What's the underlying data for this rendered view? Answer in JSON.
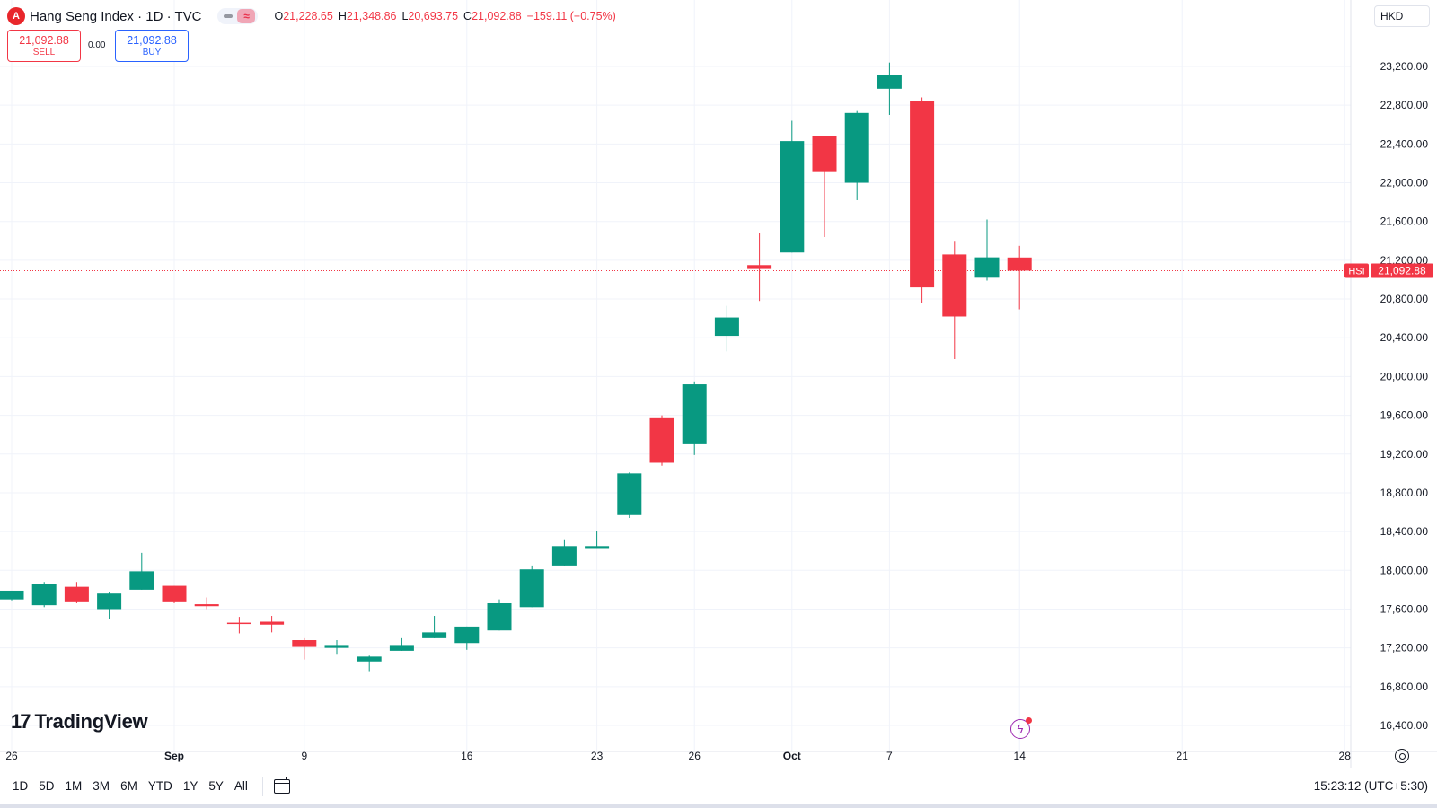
{
  "header": {
    "logo_letter": "A",
    "title": "Hang Seng Index · 1D · TVC",
    "ohlc": {
      "o_label": "O",
      "o": "21,228.65",
      "h_label": "H",
      "h": "21,348.86",
      "l_label": "L",
      "l": "20,693.75",
      "c_label": "C",
      "c": "21,092.88",
      "change": "−159.11 (−0.75%)"
    },
    "sell": {
      "price": "21,092.88",
      "label": "SELL"
    },
    "spread": "0.00",
    "buy": {
      "price": "21,092.88",
      "label": "BUY"
    },
    "currency": "HKD"
  },
  "branding": {
    "logo_mark": "17",
    "logo_text": "TradingView"
  },
  "price_tag": {
    "symbol": "HSI",
    "price": "21,092.88",
    "value": 21092.88
  },
  "footer": {
    "ranges": [
      "1D",
      "5D",
      "1M",
      "3M",
      "6M",
      "YTD",
      "1Y",
      "5Y",
      "All"
    ],
    "time": "15:23:12 (UTC+5:30)"
  },
  "colors": {
    "up": "#089981",
    "down": "#f23645",
    "grid": "#f0f3fa",
    "axis_text": "#131722"
  },
  "chart_data": {
    "type": "candlestick",
    "y_ticks": [
      16400,
      16800,
      17200,
      17600,
      18000,
      18400,
      18800,
      19200,
      19600,
      20000,
      20400,
      20800,
      21200,
      21600,
      22000,
      22400,
      22800,
      23200
    ],
    "y_tick_labels": [
      "16,400.00",
      "16,800.00",
      "17,200.00",
      "17,600.00",
      "18,000.00",
      "18,400.00",
      "18,800.00",
      "19,200.00",
      "19,600.00",
      "20,000.00",
      "20,400.00",
      "20,800.00",
      "21,200.00",
      "21,600.00",
      "22,000.00",
      "22,400.00",
      "22,800.00",
      "23,200.00"
    ],
    "x_labels": [
      {
        "bar": 0,
        "label": "26"
      },
      {
        "bar": 5,
        "label": "Sep"
      },
      {
        "bar": 9,
        "label": "9"
      },
      {
        "bar": 14,
        "label": "16"
      },
      {
        "bar": 18,
        "label": "23"
      },
      {
        "bar": 21,
        "label": "26"
      },
      {
        "bar": 24,
        "label": "Oct"
      },
      {
        "bar": 27,
        "label": "7"
      },
      {
        "bar": 31,
        "label": "14"
      },
      {
        "bar": 36,
        "label": "21"
      },
      {
        "bar": 41,
        "label": "28"
      }
    ],
    "candles": [
      {
        "o": 17700,
        "h": 17790,
        "l": 17690,
        "c": 17790
      },
      {
        "o": 17640,
        "h": 17880,
        "l": 17620,
        "c": 17860
      },
      {
        "o": 17830,
        "h": 17880,
        "l": 17660,
        "c": 17680
      },
      {
        "o": 17600,
        "h": 17780,
        "l": 17500,
        "c": 17760
      },
      {
        "o": 17800,
        "h": 18180,
        "l": 17800,
        "c": 17990
      },
      {
        "o": 17840,
        "h": 17840,
        "l": 17660,
        "c": 17680
      },
      {
        "o": 17650,
        "h": 17720,
        "l": 17600,
        "c": 17630
      },
      {
        "o": 17460,
        "h": 17520,
        "l": 17350,
        "c": 17450
      },
      {
        "o": 17470,
        "h": 17530,
        "l": 17360,
        "c": 17440
      },
      {
        "o": 17280,
        "h": 17300,
        "l": 17080,
        "c": 17210
      },
      {
        "o": 17200,
        "h": 17280,
        "l": 17130,
        "c": 17230
      },
      {
        "o": 17060,
        "h": 17120,
        "l": 16960,
        "c": 17110
      },
      {
        "o": 17170,
        "h": 17300,
        "l": 17170,
        "c": 17230
      },
      {
        "o": 17300,
        "h": 17530,
        "l": 17300,
        "c": 17360
      },
      {
        "o": 17250,
        "h": 17420,
        "l": 17180,
        "c": 17420
      },
      {
        "o": 17380,
        "h": 17700,
        "l": 17380,
        "c": 17660
      },
      {
        "o": 17620,
        "h": 18050,
        "l": 17620,
        "c": 18010
      },
      {
        "o": 18050,
        "h": 18320,
        "l": 18050,
        "c": 18250
      },
      {
        "o": 18230,
        "h": 18410,
        "l": 18230,
        "c": 18250
      },
      {
        "o": 18570,
        "h": 19010,
        "l": 18540,
        "c": 19000
      },
      {
        "o": 19570,
        "h": 19600,
        "l": 19080,
        "c": 19110
      },
      {
        "o": 19310,
        "h": 19950,
        "l": 19190,
        "c": 19920
      },
      {
        "o": 20420,
        "h": 20730,
        "l": 20260,
        "c": 20610
      },
      {
        "o": 21150,
        "h": 21480,
        "l": 20780,
        "c": 21110
      },
      {
        "o": 21280,
        "h": 22640,
        "l": 21280,
        "c": 22430
      },
      {
        "o": 22480,
        "h": 22480,
        "l": 21440,
        "c": 22110
      },
      {
        "o": 22000,
        "h": 22740,
        "l": 21820,
        "c": 22720
      },
      {
        "o": 22970,
        "h": 23240,
        "l": 22700,
        "c": 23110
      },
      {
        "o": 22840,
        "h": 22880,
        "l": 20760,
        "c": 20920
      },
      {
        "o": 21260,
        "h": 21400,
        "l": 20180,
        "c": 20620
      },
      {
        "o": 21020,
        "h": 21620,
        "l": 20990,
        "c": 21230
      },
      {
        "o": 21228.65,
        "h": 21348.86,
        "l": 20693.75,
        "c": 21092.88
      }
    ]
  }
}
